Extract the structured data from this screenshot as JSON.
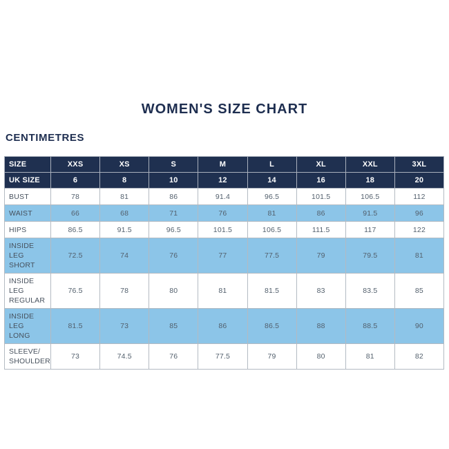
{
  "page": {
    "title": "WOMEN'S SIZE CHART",
    "unit_label": "CENTIMETRES"
  },
  "colors": {
    "navy_header": "#1f3050",
    "stripe_blue": "#8cc5e8",
    "title_navy": "#1e2e50",
    "cell_text": "#53606d",
    "border_gray": "#b3bac2"
  },
  "chart_data": {
    "type": "table",
    "title": "WOMEN'S SIZE CHART",
    "unit": "CENTIMETRES",
    "header": {
      "label": "SIZE",
      "sizes": [
        "XXS",
        "XS",
        "S",
        "M",
        "L",
        "XL",
        "XXL",
        "3XL"
      ]
    },
    "uk_size_row": {
      "label": "UK SIZE",
      "values": [
        "6",
        "8",
        "10",
        "12",
        "14",
        "16",
        "18",
        "20"
      ]
    },
    "rows": [
      {
        "label": "BUST",
        "values": [
          "78",
          "81",
          "86",
          "91.4",
          "96.5",
          "101.5",
          "106.5",
          "112"
        ]
      },
      {
        "label": "WAIST",
        "values": [
          "66",
          "68",
          "71",
          "76",
          "81",
          "86",
          "91.5",
          "96"
        ]
      },
      {
        "label": "HIPS",
        "values": [
          "86.5",
          "91.5",
          "96.5",
          "101.5",
          "106.5",
          "111.5",
          "117",
          "122"
        ]
      },
      {
        "label": "INSIDE LEG\nSHORT",
        "values": [
          "72.5",
          "74",
          "76",
          "77",
          "77.5",
          "79",
          "79.5",
          "81"
        ]
      },
      {
        "label": "INSIDE LEG\nREGULAR",
        "values": [
          "76.5",
          "78",
          "80",
          "81",
          "81.5",
          "83",
          "83.5",
          "85"
        ]
      },
      {
        "label": "INSIDE LEG\nLONG",
        "values": [
          "81.5",
          "73",
          "85",
          "86",
          "86.5",
          "88",
          "88.5",
          "90"
        ]
      },
      {
        "label": "SLEEVE/\nSHOULDER",
        "values": [
          "73",
          "74.5",
          "76",
          "77.5",
          "79",
          "80",
          "81",
          "82"
        ]
      }
    ]
  }
}
